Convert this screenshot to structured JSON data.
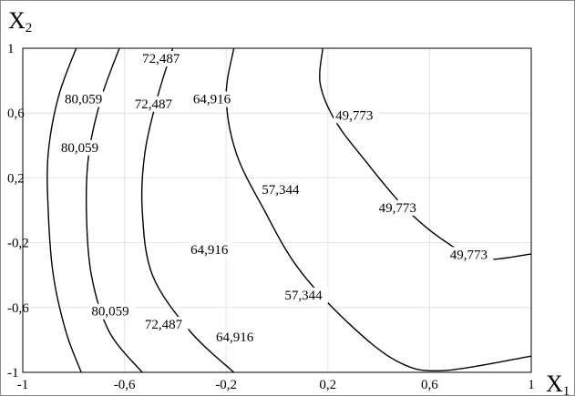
{
  "chart_data": {
    "type": "contour",
    "x_axis": {
      "name": "X",
      "subscript": "1",
      "range": [
        -1,
        1
      ],
      "ticks": [
        "-1",
        "-0,6",
        "-0,2",
        "0,2",
        "0,6",
        "1"
      ]
    },
    "y_axis": {
      "name": "X",
      "subscript": "2",
      "range": [
        -1,
        1
      ],
      "ticks": [
        "1",
        "0,6",
        "0,2",
        "-0,2",
        "-0,6",
        "-1"
      ]
    },
    "grid": true,
    "levels": [
      {
        "value": "80,059",
        "points": [
          [
            -0.79,
            1.0
          ],
          [
            -0.86,
            0.7
          ],
          [
            -0.9,
            0.35
          ],
          [
            -0.9,
            0.0
          ],
          [
            -0.88,
            -0.4
          ],
          [
            -0.83,
            -0.75
          ],
          [
            -0.77,
            -1.0
          ]
        ],
        "labels": [
          [
            -0.835,
            0.66
          ],
          [
            -0.85,
            0.36
          ],
          [
            -0.73,
            -0.65
          ]
        ]
      },
      {
        "value": "72,487",
        "points": [
          [
            -0.62,
            1.0
          ],
          [
            -0.69,
            0.7
          ],
          [
            -0.74,
            0.35
          ],
          [
            -0.75,
            0.0
          ],
          [
            -0.73,
            -0.4
          ],
          [
            -0.66,
            -0.75
          ],
          [
            -0.53,
            -1.0
          ]
        ],
        "labels": [
          [
            -0.53,
            0.91
          ],
          [
            -0.56,
            0.63
          ],
          [
            -0.52,
            -0.73
          ]
        ]
      },
      {
        "value": "64,916",
        "points": [
          [
            -0.41,
            1.0
          ],
          [
            -0.47,
            0.7
          ],
          [
            -0.52,
            0.35
          ],
          [
            -0.53,
            0.0
          ],
          [
            -0.49,
            -0.4
          ],
          [
            -0.34,
            -0.75
          ],
          [
            -0.17,
            -1.0
          ]
        ],
        "labels": [
          [
            -0.33,
            0.66
          ],
          [
            -0.34,
            -0.27
          ],
          [
            -0.24,
            -0.81
          ]
        ]
      },
      {
        "value": "57,344",
        "points": [
          [
            -0.17,
            1.0
          ],
          [
            -0.2,
            0.7
          ],
          [
            -0.16,
            0.35
          ],
          [
            -0.05,
            0.0
          ],
          [
            0.08,
            -0.35
          ],
          [
            0.27,
            -0.68
          ],
          [
            0.47,
            -0.93
          ],
          [
            0.65,
            -0.99
          ],
          [
            1.0,
            -0.9
          ]
        ],
        "labels": [
          [
            -0.06,
            0.1
          ],
          [
            0.03,
            -0.55
          ]
        ]
      },
      {
        "value": "49,773",
        "points": [
          [
            0.18,
            1.0
          ],
          [
            0.17,
            0.78
          ],
          [
            0.23,
            0.55
          ],
          [
            0.35,
            0.3
          ],
          [
            0.5,
            0.02
          ],
          [
            0.65,
            -0.18
          ],
          [
            0.8,
            -0.3
          ],
          [
            1.0,
            -0.27
          ]
        ],
        "labels": [
          [
            0.23,
            0.56
          ],
          [
            0.4,
            -0.01
          ],
          [
            0.68,
            -0.3
          ]
        ]
      }
    ]
  }
}
